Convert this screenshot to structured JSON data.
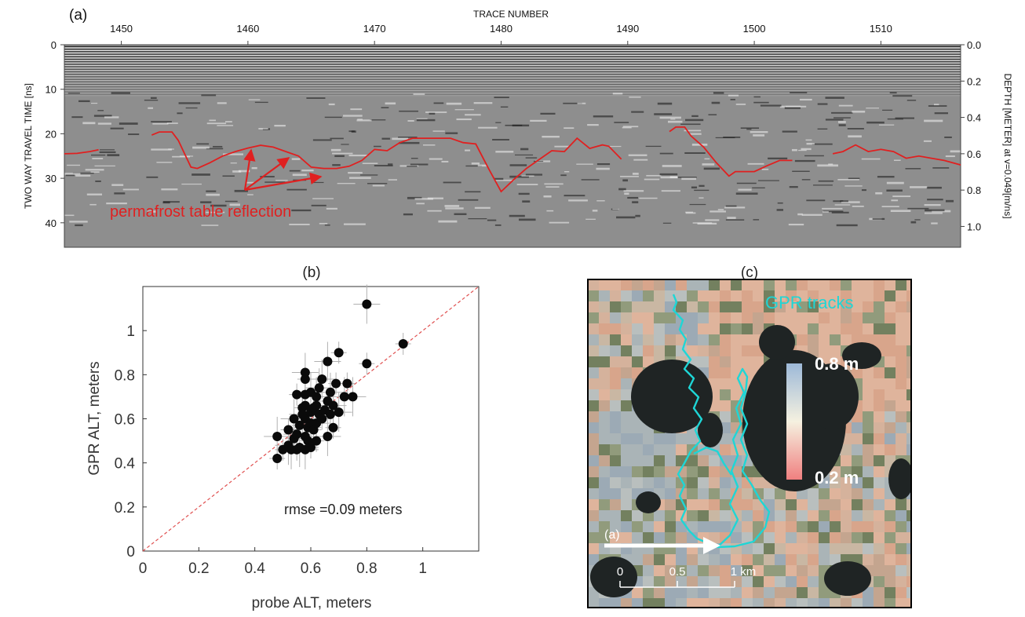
{
  "panel_a": {
    "panel_label": "(a)",
    "top_axis_label": "TRACE NUMBER",
    "left_axis_label": "TWO WAY TRAVEL TIME [ns]",
    "right_axis_label": "DEPTH [METER] at v=0.049[m/ns]",
    "annotation": "permafrost table reflection",
    "trace_ticks": [
      "1450",
      "1460",
      "1470",
      "1480",
      "1490",
      "1500",
      "1510"
    ],
    "time_ticks": [
      "0",
      "10",
      "20",
      "30",
      "40"
    ],
    "depth_ticks": [
      "0.0",
      "0.2",
      "0.4",
      "0.6",
      "0.8",
      "1.0"
    ],
    "trace_range": [
      1445.5,
      1516.3
    ],
    "time_range": [
      0,
      45.5
    ],
    "annotation_color": "#e02020",
    "reflection_trace": [
      {
        "x": [
          1445.5,
          1446.5,
          1447.5,
          1448.2
        ],
        "y": [
          24.5,
          24.4,
          24.0,
          23.6
        ]
      },
      {
        "x": [
          1452.4,
          1453,
          1454,
          1454.5,
          1455,
          1455.5,
          1456,
          1457,
          1458,
          1459,
          1460,
          1461,
          1462,
          1463,
          1464,
          1465,
          1466,
          1467,
          1468,
          1469,
          1470,
          1471,
          1472,
          1473,
          1474,
          1475,
          1476,
          1477,
          1478,
          1479,
          1480,
          1481,
          1482,
          1483,
          1484,
          1485,
          1486,
          1487,
          1488,
          1488.5,
          1489.5
        ],
        "y": [
          20.3,
          19.6,
          19.6,
          21.5,
          24.5,
          27.5,
          27.8,
          26.5,
          25.0,
          24.0,
          23.2,
          22.6,
          23.0,
          24.0,
          25.0,
          27.5,
          27.8,
          27.8,
          27.3,
          26.0,
          23.5,
          23.8,
          22.0,
          21.0,
          21.0,
          21.0,
          21.0,
          22.0,
          22.3,
          27.8,
          33.0,
          30.3,
          27.8,
          25.8,
          23.8,
          24.0,
          21.0,
          23.3,
          22.5,
          22.8,
          25.7
        ]
      },
      {
        "x": [
          1493.3,
          1493.8,
          1494.5,
          1495,
          1496,
          1497,
          1498,
          1498.5,
          1499,
          1500,
          1501,
          1502,
          1503
        ],
        "y": [
          19.5,
          18.5,
          18.5,
          20.5,
          23.0,
          26.5,
          29.5,
          28.5,
          28.5,
          28.5,
          27.2,
          26.0,
          26.0
        ]
      },
      {
        "x": [
          1506.2,
          1507,
          1508,
          1509,
          1510,
          1511,
          1512,
          1513,
          1514,
          1515,
          1516.3
        ],
        "y": [
          24.5,
          24.0,
          22.5,
          24.0,
          23.5,
          24.0,
          25.5,
          25.0,
          25.5,
          26.0,
          27.0
        ]
      }
    ]
  },
  "panel_b_label": "(b)",
  "panel_c": {
    "panel_label": "(c)",
    "tracks_label": "GPR tracks",
    "colorbar_max": "0.8 m",
    "colorbar_min": "0.2 m",
    "arrow_label": "(a)",
    "scale_labels": [
      "0",
      "0.5",
      "1 km"
    ],
    "track_color": "#1ed6d6",
    "colorbar_top_color": "#9db9d8",
    "colorbar_mid_color": "#f5f1e0",
    "colorbar_bottom_color": "#f08080"
  },
  "chart_data": {
    "type": "scatter",
    "xlabel": "probe ALT, meters",
    "ylabel": "GPR ALT, meters",
    "annotation": "rmse =0.09 meters",
    "xlim": [
      0,
      1.2
    ],
    "ylim": [
      0,
      1.2
    ],
    "xticks": [
      "0",
      "0.2",
      "0.4",
      "0.6",
      "0.8",
      "1"
    ],
    "yticks": [
      "0",
      "0.2",
      "0.4",
      "0.6",
      "0.8",
      "1"
    ],
    "reference_line": "1:1",
    "points": [
      [
        0.48,
        0.42
      ],
      [
        0.48,
        0.52
      ],
      [
        0.5,
        0.46
      ],
      [
        0.52,
        0.48
      ],
      [
        0.52,
        0.55
      ],
      [
        0.53,
        0.46
      ],
      [
        0.54,
        0.51
      ],
      [
        0.54,
        0.6
      ],
      [
        0.55,
        0.46
      ],
      [
        0.55,
        0.53
      ],
      [
        0.55,
        0.71
      ],
      [
        0.56,
        0.47
      ],
      [
        0.56,
        0.57
      ],
      [
        0.57,
        0.62
      ],
      [
        0.57,
        0.65
      ],
      [
        0.58,
        0.46
      ],
      [
        0.58,
        0.52
      ],
      [
        0.58,
        0.6
      ],
      [
        0.58,
        0.66
      ],
      [
        0.58,
        0.71
      ],
      [
        0.58,
        0.78
      ],
      [
        0.58,
        0.81
      ],
      [
        0.59,
        0.5
      ],
      [
        0.59,
        0.56
      ],
      [
        0.6,
        0.47
      ],
      [
        0.6,
        0.58
      ],
      [
        0.6,
        0.63
      ],
      [
        0.6,
        0.72
      ],
      [
        0.61,
        0.55
      ],
      [
        0.61,
        0.65
      ],
      [
        0.62,
        0.5
      ],
      [
        0.62,
        0.58
      ],
      [
        0.62,
        0.66
      ],
      [
        0.62,
        0.7
      ],
      [
        0.63,
        0.62
      ],
      [
        0.63,
        0.74
      ],
      [
        0.64,
        0.6
      ],
      [
        0.64,
        0.78
      ],
      [
        0.65,
        0.64
      ],
      [
        0.66,
        0.52
      ],
      [
        0.66,
        0.68
      ],
      [
        0.66,
        0.86
      ],
      [
        0.67,
        0.62
      ],
      [
        0.67,
        0.72
      ],
      [
        0.68,
        0.56
      ],
      [
        0.68,
        0.66
      ],
      [
        0.69,
        0.76
      ],
      [
        0.7,
        0.63
      ],
      [
        0.7,
        0.9
      ],
      [
        0.72,
        0.7
      ],
      [
        0.73,
        0.76
      ],
      [
        0.75,
        0.7
      ],
      [
        0.8,
        0.85
      ],
      [
        0.8,
        1.12
      ],
      [
        0.93,
        0.94
      ]
    ]
  }
}
